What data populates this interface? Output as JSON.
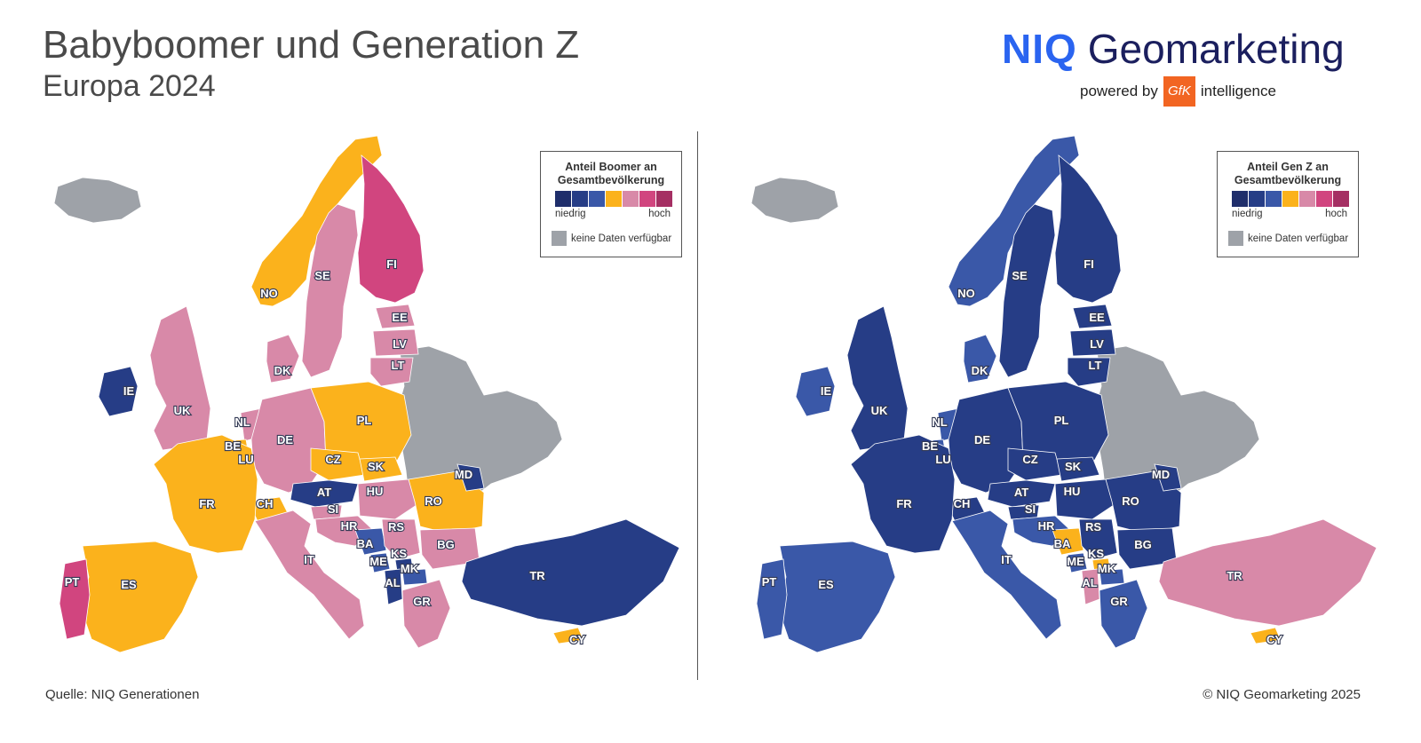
{
  "header": {
    "title": "Babyboomer und Generation Z",
    "subtitle": "Europa 2024"
  },
  "brand": {
    "niq": "NIQ",
    "geomarketing": "Geomarketing",
    "powered_by": "powered by",
    "gfk": "GfK",
    "intelligence": "intelligence"
  },
  "colors": {
    "scale": [
      "#1f2e6b",
      "#263d86",
      "#3a58a8",
      "#fbb21c",
      "#d889a8",
      "#d1457f",
      "#a52f63"
    ],
    "no_data": "#9ea2a8"
  },
  "maps": [
    {
      "legend": {
        "title": "Anteil Boomer an Gesamtbevölkerung",
        "low": "niedrig",
        "high": "hoch",
        "no_data": "keine Daten verfügbar"
      },
      "regions": {
        "IS": "no_data",
        "IE": 1,
        "UK": 4,
        "NO": 3,
        "SE": 4,
        "FI": 5,
        "EE": 4,
        "LV": 4,
        "LT": 4,
        "DK": 4,
        "NL": 4,
        "BE": 3,
        "LU": 3,
        "DE": 4,
        "PL": 3,
        "CZ": 3,
        "SK": 3,
        "AT": 1,
        "CH": 3,
        "FR": 3,
        "SI": 4,
        "HR": 4,
        "HU": 4,
        "RO": 3,
        "MD": 1,
        "BA": 2,
        "RS": 4,
        "KS": 1,
        "ME": 2,
        "MK": 2,
        "AL": 1,
        "BG": 4,
        "GR": 4,
        "IT": 4,
        "ES": 3,
        "PT": 5,
        "TR": 1,
        "CY": 3,
        "RU_BY_UA": "no_data"
      }
    },
    {
      "legend": {
        "title": "Anteil Gen Z an Gesamtbevölkerung",
        "low": "niedrig",
        "high": "hoch",
        "no_data": "keine Daten verfügbar"
      },
      "regions": {
        "IS": "no_data",
        "IE": 2,
        "UK": 1,
        "NO": 2,
        "SE": 1,
        "FI": 1,
        "EE": 1,
        "LV": 1,
        "LT": 1,
        "DK": 2,
        "NL": 2,
        "BE": 2,
        "LU": 2,
        "DE": 1,
        "PL": 1,
        "CZ": 1,
        "SK": 1,
        "AT": 1,
        "CH": 1,
        "FR": 1,
        "SI": 1,
        "HR": 2,
        "HU": 1,
        "RO": 1,
        "MD": 1,
        "BA": 3,
        "RS": 1,
        "KS": 3,
        "ME": 2,
        "MK": 2,
        "AL": 4,
        "BG": 1,
        "GR": 2,
        "IT": 2,
        "ES": 2,
        "PT": 2,
        "TR": 4,
        "CY": 3,
        "RU_BY_UA": "no_data"
      }
    }
  ],
  "country_labels": [
    "IE",
    "UK",
    "NO",
    "SE",
    "FI",
    "EE",
    "LV",
    "LT",
    "DK",
    "NL",
    "BE",
    "LU",
    "DE",
    "PL",
    "CZ",
    "SK",
    "AT",
    "CH",
    "FR",
    "SI",
    "HR",
    "HU",
    "RO",
    "MD",
    "BA",
    "RS",
    "KS",
    "ME",
    "MK",
    "AL",
    "BG",
    "GR",
    "IT",
    "ES",
    "PT",
    "TR",
    "CY"
  ],
  "footer": {
    "source": "Quelle: NIQ Generationen",
    "copyright": "© NIQ Geomarketing 2025"
  }
}
